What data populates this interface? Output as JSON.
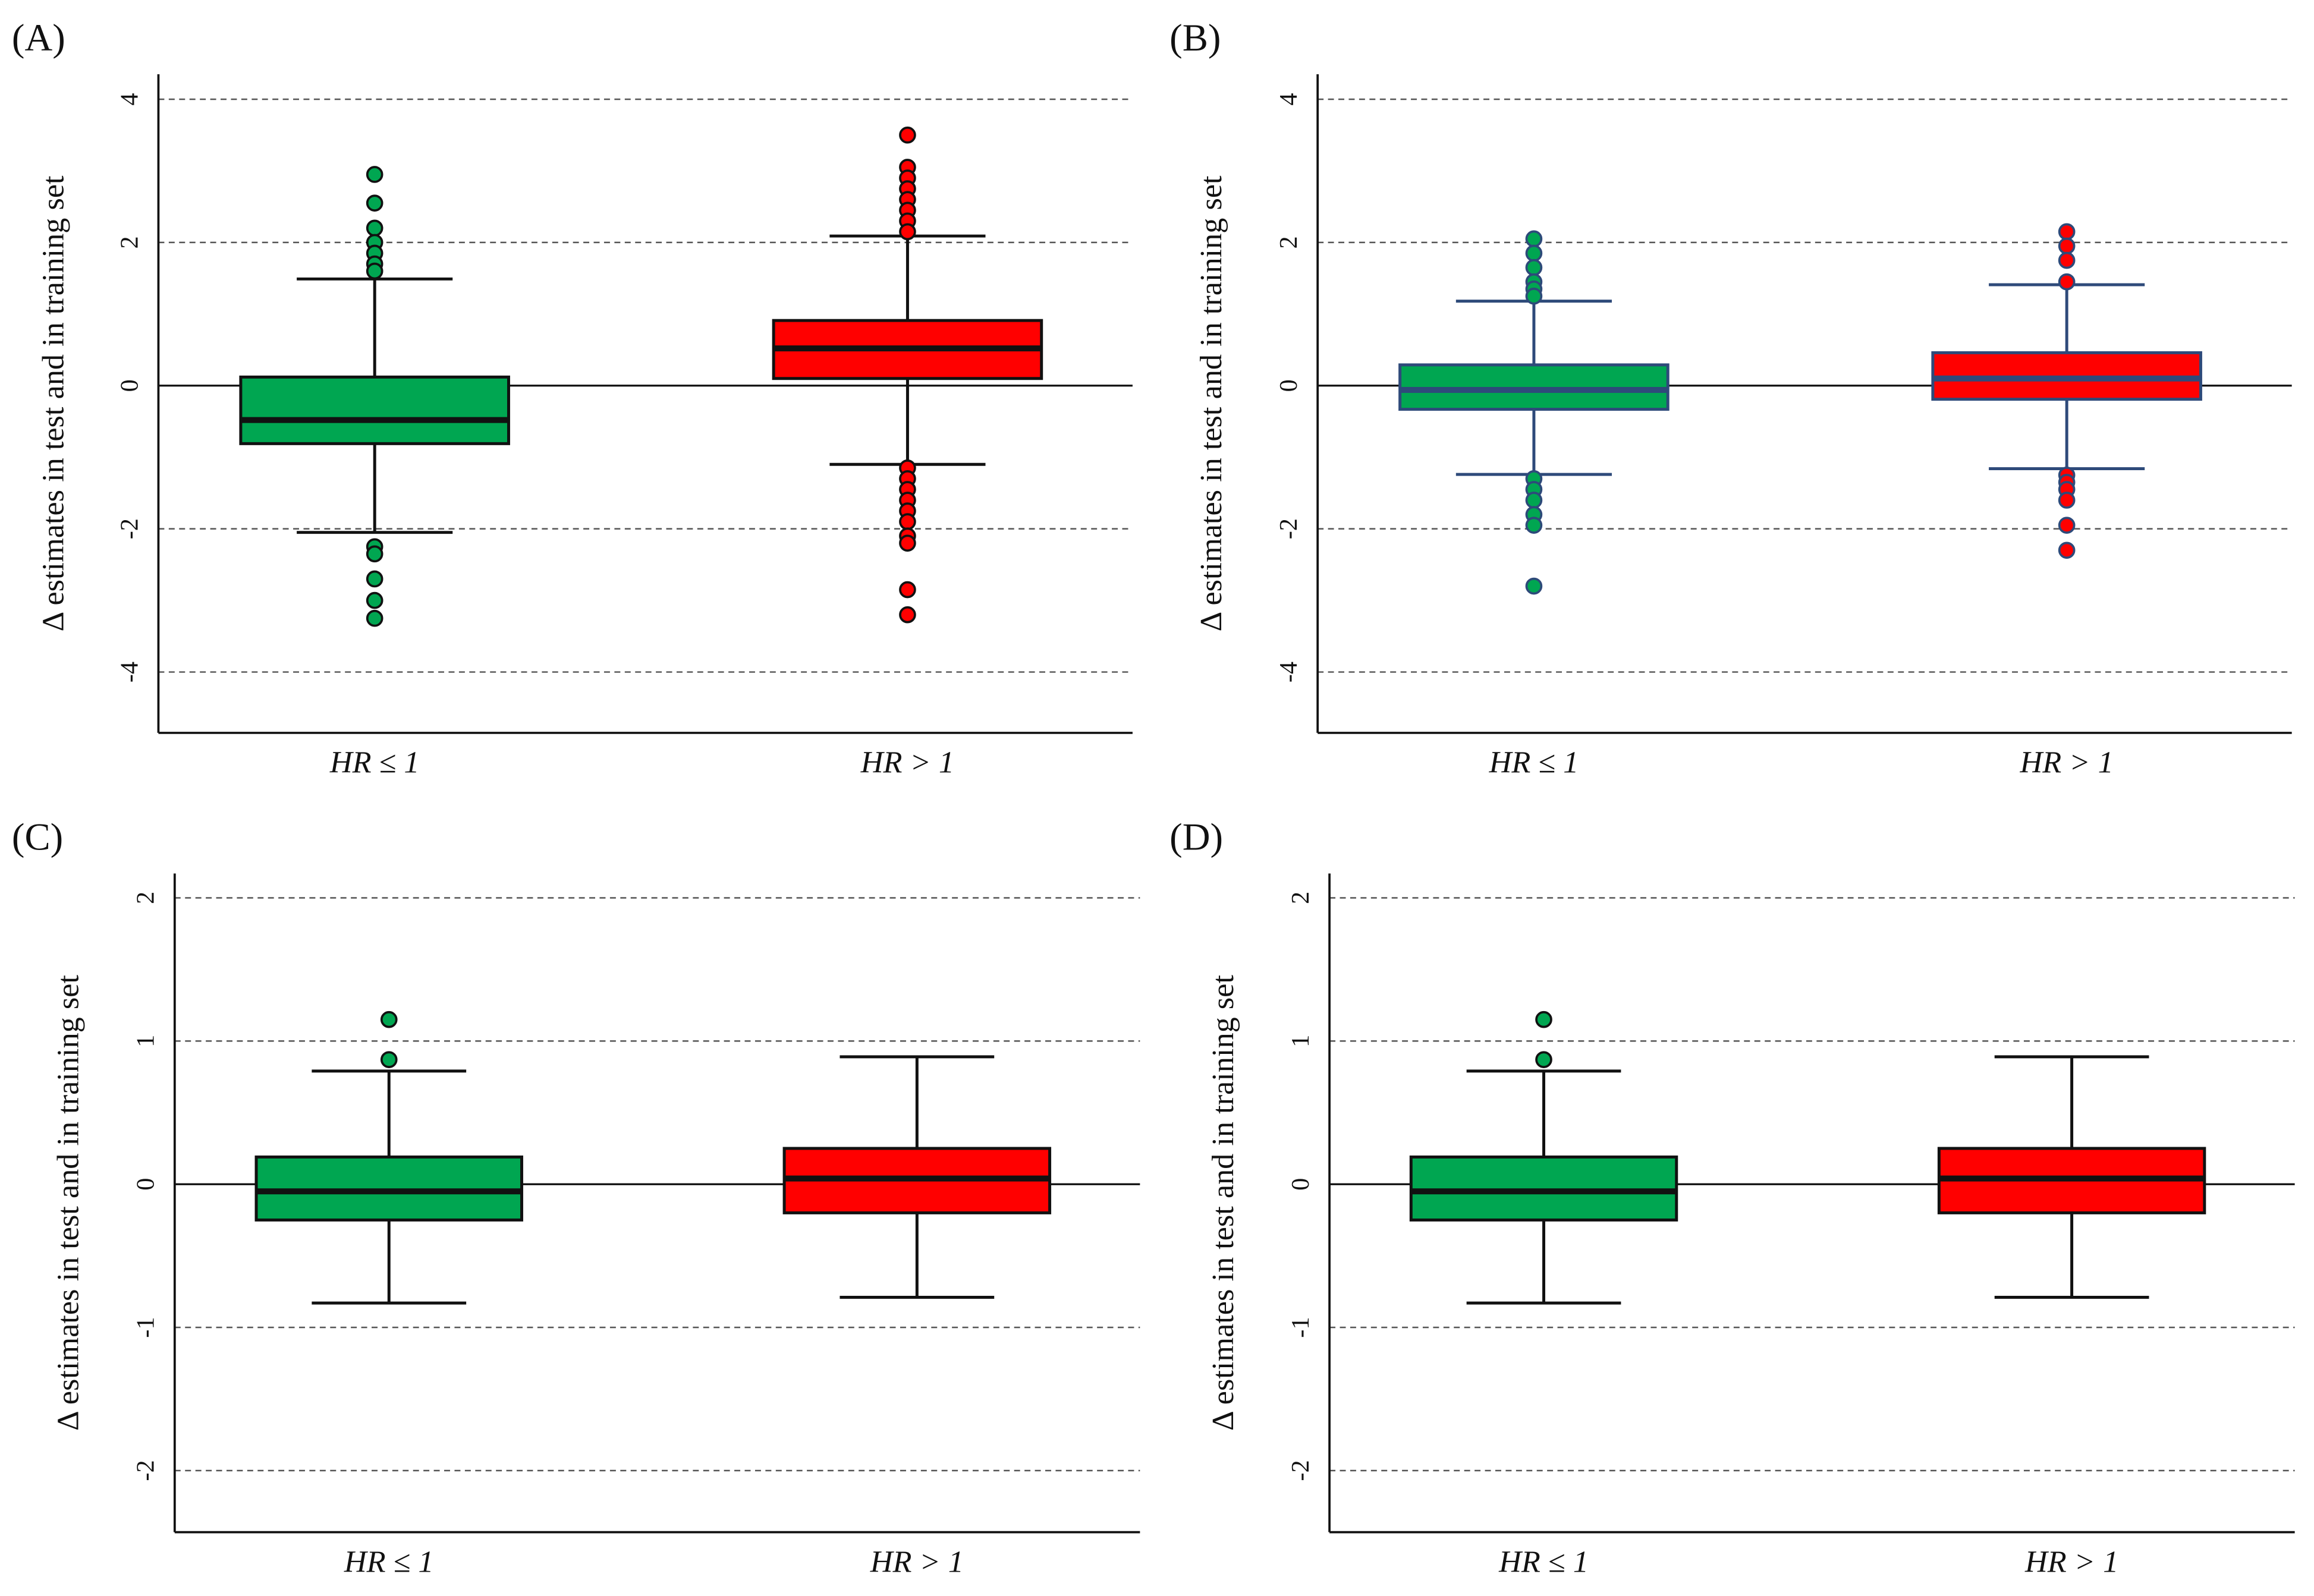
{
  "chart_data": [
    {
      "type": "box",
      "panel": "(A)",
      "y_label": "Δ estimates  in test and in training set",
      "categories": [
        "HR ≤ 1",
        "HR > 1"
      ],
      "ylim": [
        -4.85,
        4.35
      ],
      "yticks": [
        4,
        2,
        0,
        -2,
        -4
      ],
      "grid": true,
      "line_color": "#111111",
      "boxes": [
        {
          "color": "#00a651",
          "whisker_low": -2.05,
          "q1": -0.81,
          "median": -0.48,
          "q3": 0.12,
          "whisker_high": 1.49,
          "outliers": [
            2.95,
            2.55,
            2.2,
            2.0,
            1.85,
            1.7,
            1.6,
            -2.25,
            -2.35,
            -2.7,
            -3.0,
            -3.25
          ]
        },
        {
          "color": "#ff0000",
          "whisker_low": -1.1,
          "q1": 0.1,
          "median": 0.52,
          "q3": 0.91,
          "whisker_high": 2.09,
          "outliers": [
            3.5,
            3.05,
            2.9,
            2.75,
            2.6,
            2.45,
            2.3,
            2.15,
            -1.15,
            -1.3,
            -1.45,
            -1.6,
            -1.75,
            -1.9,
            -2.1,
            -2.2,
            -2.85,
            -3.2
          ]
        }
      ]
    },
    {
      "type": "box",
      "panel": "(B)",
      "y_label": "Δ estimates  in test and in training set",
      "categories": [
        "HR ≤ 1",
        "HR > 1"
      ],
      "ylim": [
        -4.85,
        4.35
      ],
      "yticks": [
        4,
        2,
        0,
        -2,
        -4
      ],
      "grid": true,
      "line_color": "#2e4a7a",
      "boxes": [
        {
          "color": "#00a651",
          "whisker_low": -1.24,
          "q1": -0.33,
          "median": -0.06,
          "q3": 0.29,
          "whisker_high": 1.18,
          "outliers": [
            2.05,
            1.85,
            1.65,
            1.45,
            1.35,
            1.25,
            -1.3,
            -1.45,
            -1.6,
            -1.8,
            -1.95,
            -2.8
          ]
        },
        {
          "color": "#ff0000",
          "whisker_low": -1.16,
          "q1": -0.19,
          "median": 0.1,
          "q3": 0.46,
          "whisker_high": 1.41,
          "outliers": [
            2.15,
            1.95,
            1.75,
            1.45,
            -1.25,
            -1.35,
            -1.45,
            -1.6,
            -1.95,
            -2.3
          ]
        }
      ]
    },
    {
      "type": "box",
      "panel": "(C)",
      "y_label": "Δ estimates  in test and in training set",
      "categories": [
        "HR ≤ 1",
        "HR > 1"
      ],
      "ylim": [
        -2.43,
        2.17
      ],
      "yticks": [
        2,
        1,
        0,
        -1,
        -2
      ],
      "grid": true,
      "line_color": "#111111",
      "boxes": [
        {
          "color": "#00a651",
          "whisker_low": -0.83,
          "q1": -0.25,
          "median": -0.05,
          "q3": 0.19,
          "whisker_high": 0.79,
          "outliers": [
            1.15,
            0.87
          ]
        },
        {
          "color": "#ff0000",
          "whisker_low": -0.79,
          "q1": -0.2,
          "median": 0.04,
          "q3": 0.25,
          "whisker_high": 0.89,
          "outliers": []
        }
      ]
    },
    {
      "type": "box",
      "panel": "(D)",
      "y_label": "Δ estimates  in test and in training set",
      "categories": [
        "HR ≤ 1",
        "HR > 1"
      ],
      "ylim": [
        -2.43,
        2.17
      ],
      "yticks": [
        2,
        1,
        0,
        -1,
        -2
      ],
      "grid": true,
      "line_color": "#111111",
      "boxes": [
        {
          "color": "#00a651",
          "whisker_low": -0.83,
          "q1": -0.25,
          "median": -0.05,
          "q3": 0.19,
          "whisker_high": 0.79,
          "outliers": [
            1.15,
            0.87
          ]
        },
        {
          "color": "#ff0000",
          "whisker_low": -0.79,
          "q1": -0.2,
          "median": 0.04,
          "q3": 0.25,
          "whisker_high": 0.89,
          "outliers": []
        }
      ]
    }
  ]
}
